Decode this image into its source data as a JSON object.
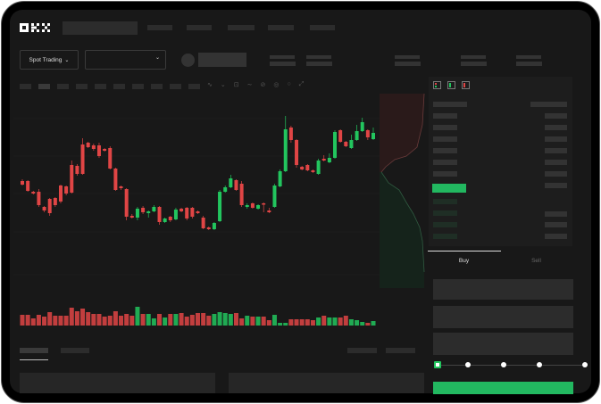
{
  "header": {
    "logo": "OKX"
  },
  "toolbar": {
    "market_selector": "Spot Trading",
    "chevron": "chevron-down-icon"
  },
  "order_form": {
    "tabs": [
      {
        "label": "Buy",
        "active": true
      },
      {
        "label": "Sell",
        "active": false
      }
    ],
    "slider_percent": 0,
    "submit_color": "#22b860"
  },
  "colors": {
    "up": "#22c55e",
    "down": "#e04545",
    "background": "#181818"
  },
  "chart_data": {
    "type": "candlestick",
    "candles": [
      [
        97,
        93,
        99,
        92
      ],
      [
        97,
        86,
        98,
        85
      ],
      [
        85,
        83,
        86,
        82
      ],
      [
        85,
        70,
        88,
        68
      ],
      [
        68,
        64,
        69,
        62
      ],
      [
        77,
        61,
        78,
        58
      ],
      [
        78,
        70,
        79,
        68
      ],
      [
        92,
        74,
        93,
        72
      ],
      [
        91,
        83,
        92,
        81
      ],
      [
        115,
        84,
        120,
        83
      ],
      [
        114,
        105,
        116,
        103
      ],
      [
        138,
        105,
        145,
        104
      ],
      [
        140,
        135,
        141,
        134
      ],
      [
        137,
        133,
        139,
        131
      ],
      [
        137,
        125,
        140,
        123
      ],
      [
        133,
        131,
        134,
        130
      ],
      [
        134,
        111,
        136,
        110
      ],
      [
        111,
        87,
        112,
        86
      ],
      [
        91,
        89,
        92,
        87
      ],
      [
        88,
        57,
        89,
        53
      ],
      [
        58,
        56,
        60,
        55
      ],
      [
        56,
        66,
        68,
        53
      ],
      [
        67,
        62,
        69,
        60
      ],
      [
        61,
        63,
        64,
        56
      ],
      [
        63,
        68,
        70,
        62
      ],
      [
        68,
        51,
        69,
        48
      ],
      [
        51,
        55,
        56,
        50
      ],
      [
        57,
        53,
        58,
        51
      ],
      [
        54,
        65,
        67,
        53
      ],
      [
        66,
        63,
        67,
        62
      ],
      [
        67,
        55,
        68,
        53
      ],
      [
        67,
        57,
        68,
        55
      ],
      [
        63,
        61,
        64,
        60
      ],
      [
        56,
        44,
        58,
        43
      ],
      [
        45,
        43,
        46,
        42
      ],
      [
        43,
        50,
        51,
        42
      ],
      [
        52,
        85,
        87,
        51
      ],
      [
        85,
        90,
        92,
        84
      ],
      [
        90,
        100,
        104,
        89
      ],
      [
        98,
        87,
        99,
        86
      ],
      [
        94,
        70,
        97,
        68
      ],
      [
        68,
        70,
        72,
        66
      ],
      [
        72,
        67,
        73,
        66
      ],
      [
        66,
        70,
        71,
        65
      ],
      [
        72,
        71,
        73,
        62
      ],
      [
        64,
        62,
        67,
        61
      ],
      [
        68,
        92,
        94,
        67
      ],
      [
        91,
        108,
        110,
        90
      ],
      [
        108,
        155,
        170,
        107
      ],
      [
        157,
        143,
        159,
        140
      ],
      [
        143,
        115,
        144,
        112
      ],
      [
        113,
        110,
        114,
        109
      ],
      [
        115,
        109,
        116,
        108
      ],
      [
        109,
        107,
        110,
        106
      ],
      [
        105,
        120,
        122,
        104
      ],
      [
        122,
        120,
        126,
        119
      ],
      [
        118,
        123,
        128,
        117
      ],
      [
        123,
        152,
        154,
        122
      ],
      [
        154,
        141,
        155,
        140
      ],
      [
        141,
        136,
        142,
        135
      ],
      [
        134,
        143,
        149,
        133
      ],
      [
        143,
        153,
        160,
        142
      ],
      [
        153,
        163,
        168,
        152
      ],
      [
        154,
        146,
        155,
        143
      ],
      [
        144,
        151,
        157,
        143
      ]
    ],
    "volumes": [
      12,
      12,
      8,
      12,
      10,
      15,
      11,
      11,
      11,
      20,
      16,
      19,
      15,
      13,
      13,
      10,
      11,
      16,
      11,
      13,
      11,
      21,
      13,
      13,
      8,
      13,
      9,
      13,
      13,
      14,
      10,
      12,
      14,
      14,
      11,
      13,
      15,
      14,
      13,
      14,
      8,
      11,
      10,
      10,
      10,
      6,
      12,
      3,
      3,
      7,
      7,
      7,
      7,
      6,
      9,
      11,
      9,
      9,
      9,
      11,
      7,
      6,
      4,
      3,
      5
    ]
  }
}
